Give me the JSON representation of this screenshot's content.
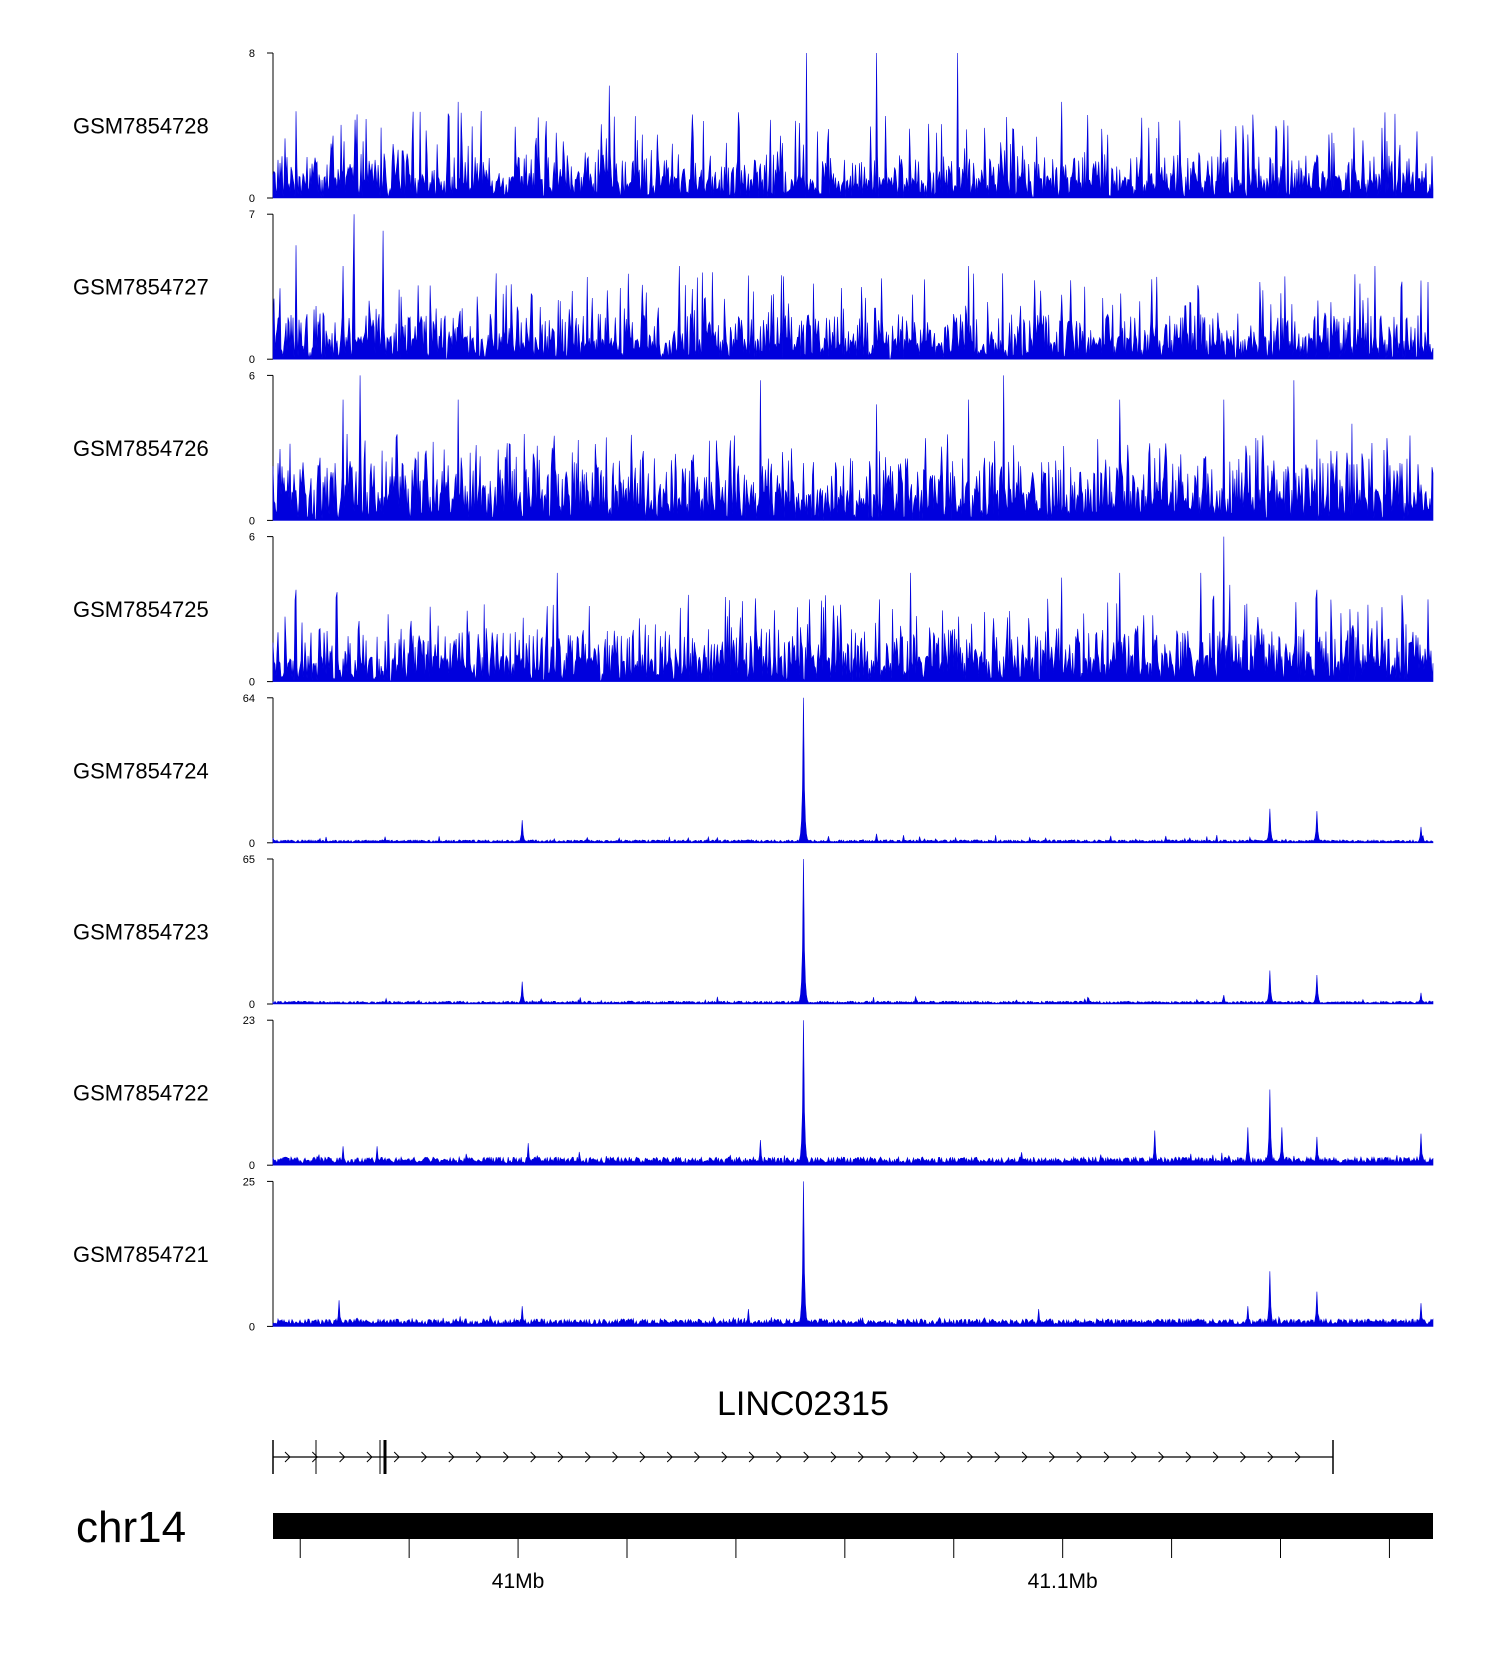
{
  "chart_data": {
    "type": "area",
    "tracks": [
      {
        "name": "GSM7854728",
        "ylim": [
          0,
          8
        ],
        "profile": "flat",
        "base": 1.2,
        "peaks": [
          [
            0.05,
            3.0
          ],
          [
            0.16,
            5.3
          ],
          [
            0.29,
            6.2
          ],
          [
            0.46,
            8.0
          ],
          [
            0.52,
            8.0
          ],
          [
            0.59,
            8.0
          ],
          [
            0.68,
            5.3
          ],
          [
            0.84,
            3.5
          ],
          [
            0.91,
            3.5
          ]
        ],
        "ytick_labels": [
          "0",
          "8"
        ]
      },
      {
        "name": "GSM7854727",
        "ylim": [
          0,
          7
        ],
        "profile": "flat",
        "base": 1.1,
        "peaks": [
          [
            0.02,
            5.5
          ],
          [
            0.06,
            4.5
          ],
          [
            0.07,
            7.0
          ],
          [
            0.095,
            6.2
          ],
          [
            0.35,
            4.5
          ],
          [
            0.44,
            4.0
          ],
          [
            0.6,
            4.5
          ],
          [
            0.7,
            3.5
          ],
          [
            0.95,
            4.5
          ],
          [
            0.99,
            3.8
          ]
        ],
        "ytick_labels": [
          "0",
          "7"
        ]
      },
      {
        "name": "GSM7854726",
        "ylim": [
          0,
          6
        ],
        "profile": "flat",
        "base": 1.3,
        "peaks": [
          [
            0.06,
            5.0
          ],
          [
            0.075,
            6.0
          ],
          [
            0.16,
            5.0
          ],
          [
            0.42,
            5.8
          ],
          [
            0.52,
            4.8
          ],
          [
            0.6,
            5.0
          ],
          [
            0.63,
            6.0
          ],
          [
            0.73,
            5.0
          ],
          [
            0.82,
            5.0
          ],
          [
            0.88,
            5.8
          ],
          [
            0.93,
            4.0
          ]
        ],
        "ytick_labels": [
          "0",
          "6"
        ]
      },
      {
        "name": "GSM7854725",
        "ylim": [
          0,
          6
        ],
        "profile": "flat",
        "base": 1.1,
        "peaks": [
          [
            0.02,
            3.8
          ],
          [
            0.055,
            3.7
          ],
          [
            0.245,
            4.5
          ],
          [
            0.39,
            3.5
          ],
          [
            0.55,
            4.5
          ],
          [
            0.68,
            4.3
          ],
          [
            0.73,
            4.5
          ],
          [
            0.8,
            4.5
          ],
          [
            0.825,
            4.0
          ],
          [
            0.82,
            6.0
          ],
          [
            0.9,
            3.8
          ]
        ],
        "ytick_labels": [
          "0",
          "6"
        ]
      },
      {
        "name": "GSM7854724",
        "ylim": [
          0,
          64
        ],
        "profile": "peaky",
        "base": 1.0,
        "peaks": [
          [
            0.215,
            10
          ],
          [
            0.457,
            64
          ],
          [
            0.52,
            4
          ],
          [
            0.77,
            3
          ],
          [
            0.859,
            15
          ],
          [
            0.9,
            14
          ],
          [
            0.99,
            7
          ]
        ],
        "ytick_labels": [
          "0",
          "64"
        ]
      },
      {
        "name": "GSM7854723",
        "ylim": [
          0,
          65
        ],
        "profile": "peaky",
        "base": 1.0,
        "peaks": [
          [
            0.215,
            10
          ],
          [
            0.457,
            65
          ],
          [
            0.82,
            4
          ],
          [
            0.859,
            15
          ],
          [
            0.9,
            13
          ],
          [
            0.99,
            5
          ]
        ],
        "ytick_labels": [
          "0",
          "65"
        ]
      },
      {
        "name": "GSM7854722",
        "ylim": [
          0,
          23
        ],
        "profile": "peaky",
        "base": 1.0,
        "peaks": [
          [
            0.06,
            3
          ],
          [
            0.09,
            3
          ],
          [
            0.22,
            3.5
          ],
          [
            0.42,
            4
          ],
          [
            0.457,
            23
          ],
          [
            0.76,
            5.5
          ],
          [
            0.84,
            6
          ],
          [
            0.859,
            12
          ],
          [
            0.87,
            6
          ],
          [
            0.9,
            4.5
          ],
          [
            0.99,
            5
          ]
        ],
        "ytick_labels": [
          "0",
          "23"
        ]
      },
      {
        "name": "GSM7854721",
        "ylim": [
          0,
          25
        ],
        "profile": "peaky",
        "base": 1.0,
        "peaks": [
          [
            0.057,
            4.5
          ],
          [
            0.215,
            3.5
          ],
          [
            0.41,
            3
          ],
          [
            0.457,
            25
          ],
          [
            0.66,
            3
          ],
          [
            0.84,
            3.5
          ],
          [
            0.859,
            9.5
          ],
          [
            0.9,
            6
          ],
          [
            0.99,
            4
          ]
        ],
        "ytick_labels": [
          "0",
          "25"
        ]
      }
    ],
    "gene": {
      "name": "LINC02315",
      "strand": "+"
    },
    "chromosome": "chr14",
    "xlim_mb": [
      40.955,
      41.168
    ],
    "xtick_labels": [
      "41Mb",
      "41.1Mb"
    ]
  }
}
